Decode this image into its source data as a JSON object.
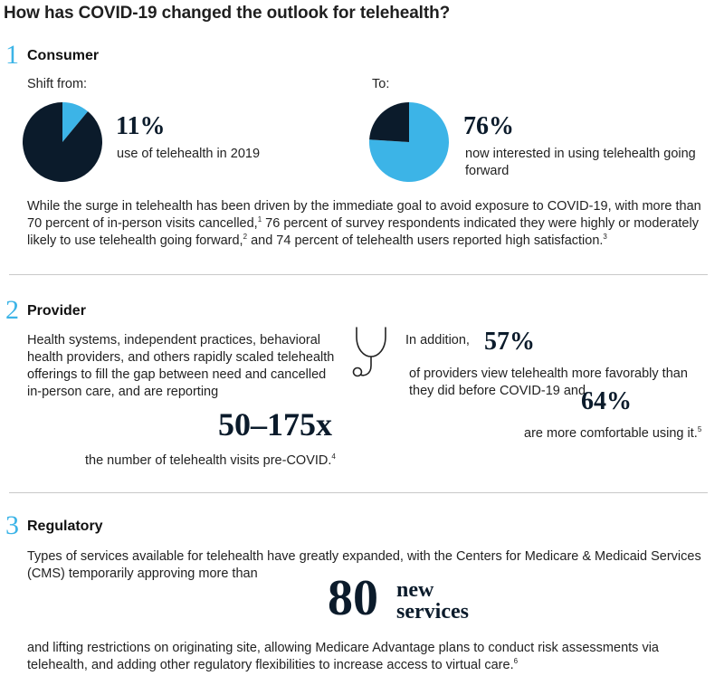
{
  "title": "How has COVID-19 changed the outlook for telehealth?",
  "colors": {
    "accent": "#3cb4e7",
    "dark": "#0b1b2b",
    "divider": "#c9c9c9"
  },
  "consumer": {
    "number": "1",
    "heading": "Consumer",
    "shift_from_label": "Shift from:",
    "to_label": "To:",
    "stat1_value": "11%",
    "stat1_text": "use of telehealth in 2019",
    "stat2_value": "76%",
    "stat2_text": "now interested in using telehealth going forward",
    "para": "While the surge in telehealth has been driven by the immediate goal to avoid exposure to COVID-19, with more than 70 percent of in-person visits cancelled,",
    "para_sup1": "1",
    "para_b": " 76 percent of survey respondents indicated they were highly or moderately likely to use telehealth going forward,",
    "para_sup2": "2",
    "para_c": " and 74 percent of telehealth users reported high satisfaction.",
    "para_sup3": "3"
  },
  "provider": {
    "number": "2",
    "heading": "Provider",
    "para": "Health systems, independent practices, behavioral health providers, and others rapidly scaled telehealth offerings to fill the gap between need and cancelled in-person care, and are reporting",
    "big_stat": "50–175x",
    "big_stat_text": "the number of telehealth visits pre-COVID.",
    "big_stat_sup": "4",
    "in_addition": "In addition,",
    "stat57": "57%",
    "stat57_text": "of providers view telehealth more favorably than they did before COVID-19 and",
    "stat64": "64%",
    "stat64_text": "are more comfortable using it.",
    "stat64_sup": "5",
    "icon": "stethoscope-icon"
  },
  "regulatory": {
    "number": "3",
    "heading": "Regulatory",
    "para1": "Types of services available for telehealth have greatly expanded, with the Centers for Medicare & Medicaid Services (CMS) temporarily approving more than",
    "big_num": "80",
    "big_word1": "new",
    "big_word2": "services",
    "para2": "and lifting restrictions on originating site, allowing Medicare Advantage plans to conduct risk assessments via telehealth, and adding other regulatory flexibilities to increase access to virtual care.",
    "para2_sup": "6"
  },
  "chart_data": [
    {
      "type": "pie",
      "title": "",
      "categories": [
        "use of telehealth in 2019",
        ""
      ],
      "values": [
        11,
        89
      ],
      "colors": [
        "#3cb4e7",
        "#0b1b2b"
      ]
    },
    {
      "type": "pie",
      "title": "",
      "categories": [
        "now interested in using telehealth going forward",
        ""
      ],
      "values": [
        76,
        24
      ],
      "colors": [
        "#3cb4e7",
        "#0b1b2b"
      ]
    }
  ]
}
